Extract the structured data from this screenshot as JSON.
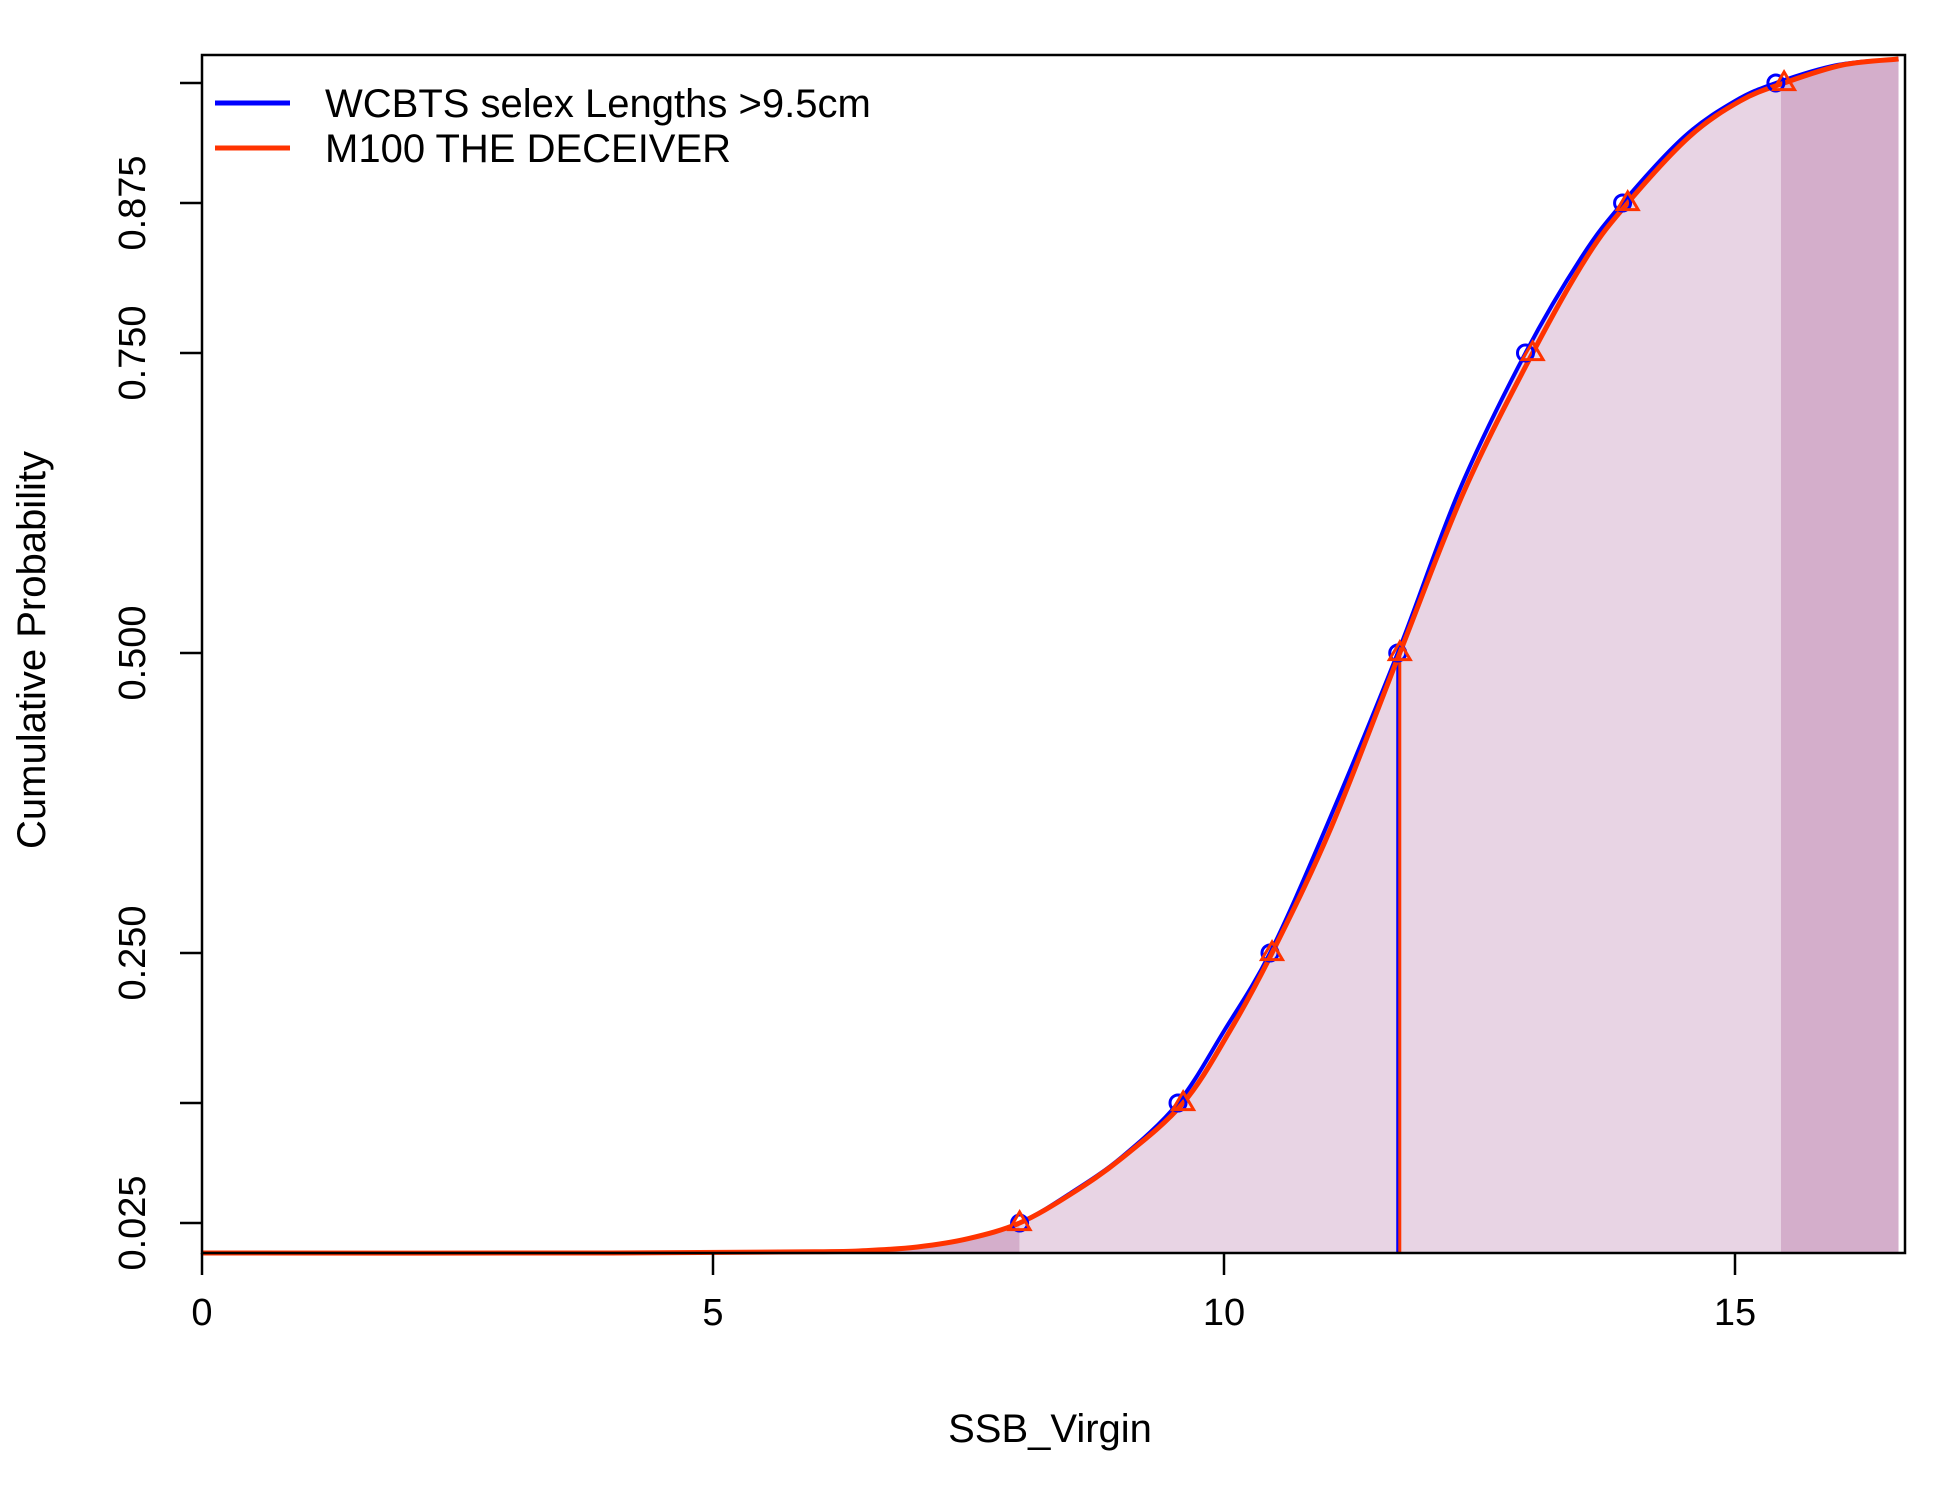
{
  "chart_data": {
    "type": "line",
    "title": "",
    "xlabel": "SSB_Virgin",
    "ylabel": "Cumulative Probability",
    "xlim": [
      0,
      16.6
    ],
    "ylim": [
      0,
      1
    ],
    "x_ticks": [
      0,
      5,
      10,
      15
    ],
    "y_ticks": [
      0.025,
      0.25,
      0.5,
      0.75,
      0.875
    ],
    "grid": false,
    "legend_position": "top-left",
    "series": [
      {
        "name": "WCBTS selex Lengths >9.5cm",
        "color": "#0000ff",
        "marker": "circle",
        "median": 11.7,
        "quantile_points": [
          {
            "x": 8.0,
            "y": 0.025
          },
          {
            "x": 9.55,
            "y": 0.125
          },
          {
            "x": 10.45,
            "y": 0.25
          },
          {
            "x": 11.7,
            "y": 0.5
          },
          {
            "x": 12.95,
            "y": 0.75
          },
          {
            "x": 13.9,
            "y": 0.875
          },
          {
            "x": 15.4,
            "y": 0.975
          }
        ],
        "cdf": [
          {
            "x": 0.0,
            "y": 0.0
          },
          {
            "x": 4.0,
            "y": 0.0
          },
          {
            "x": 6.0,
            "y": 0.001
          },
          {
            "x": 6.5,
            "y": 0.002
          },
          {
            "x": 7.0,
            "y": 0.005
          },
          {
            "x": 7.5,
            "y": 0.012
          },
          {
            "x": 8.0,
            "y": 0.025
          },
          {
            "x": 8.5,
            "y": 0.05
          },
          {
            "x": 9.0,
            "y": 0.08
          },
          {
            "x": 9.55,
            "y": 0.125
          },
          {
            "x": 10.0,
            "y": 0.185
          },
          {
            "x": 10.45,
            "y": 0.25
          },
          {
            "x": 11.0,
            "y": 0.355
          },
          {
            "x": 11.7,
            "y": 0.5
          },
          {
            "x": 12.3,
            "y": 0.635
          },
          {
            "x": 12.95,
            "y": 0.75
          },
          {
            "x": 13.5,
            "y": 0.83
          },
          {
            "x": 13.9,
            "y": 0.875
          },
          {
            "x": 14.5,
            "y": 0.93
          },
          {
            "x": 15.0,
            "y": 0.96
          },
          {
            "x": 15.4,
            "y": 0.975
          },
          {
            "x": 16.0,
            "y": 0.99
          },
          {
            "x": 16.6,
            "y": 0.995
          }
        ]
      },
      {
        "name": "M100 THE DECEIVER",
        "color": "#ff3300",
        "marker": "triangle",
        "median": 11.72,
        "quantile_points": [
          {
            "x": 8.0,
            "y": 0.025
          },
          {
            "x": 9.6,
            "y": 0.125
          },
          {
            "x": 10.47,
            "y": 0.25
          },
          {
            "x": 11.72,
            "y": 0.5
          },
          {
            "x": 13.02,
            "y": 0.75
          },
          {
            "x": 13.95,
            "y": 0.875
          },
          {
            "x": 15.48,
            "y": 0.975
          }
        ],
        "cdf": [
          {
            "x": 0.0,
            "y": 0.0
          },
          {
            "x": 4.0,
            "y": 0.0
          },
          {
            "x": 6.0,
            "y": 0.001
          },
          {
            "x": 6.5,
            "y": 0.002
          },
          {
            "x": 7.0,
            "y": 0.005
          },
          {
            "x": 7.5,
            "y": 0.012
          },
          {
            "x": 8.0,
            "y": 0.025
          },
          {
            "x": 8.5,
            "y": 0.049
          },
          {
            "x": 9.0,
            "y": 0.079
          },
          {
            "x": 9.6,
            "y": 0.125
          },
          {
            "x": 10.05,
            "y": 0.184
          },
          {
            "x": 10.47,
            "y": 0.25
          },
          {
            "x": 11.05,
            "y": 0.355
          },
          {
            "x": 11.72,
            "y": 0.5
          },
          {
            "x": 12.35,
            "y": 0.635
          },
          {
            "x": 13.02,
            "y": 0.75
          },
          {
            "x": 13.55,
            "y": 0.83
          },
          {
            "x": 13.95,
            "y": 0.875
          },
          {
            "x": 14.55,
            "y": 0.93
          },
          {
            "x": 15.05,
            "y": 0.96
          },
          {
            "x": 15.48,
            "y": 0.975
          },
          {
            "x": 16.05,
            "y": 0.99
          },
          {
            "x": 16.6,
            "y": 0.995
          }
        ]
      }
    ],
    "shading": {
      "tail_color": "#d4aecb",
      "interval_color": "#e8d4e4",
      "interval": [
        8.0,
        15.45
      ]
    }
  }
}
